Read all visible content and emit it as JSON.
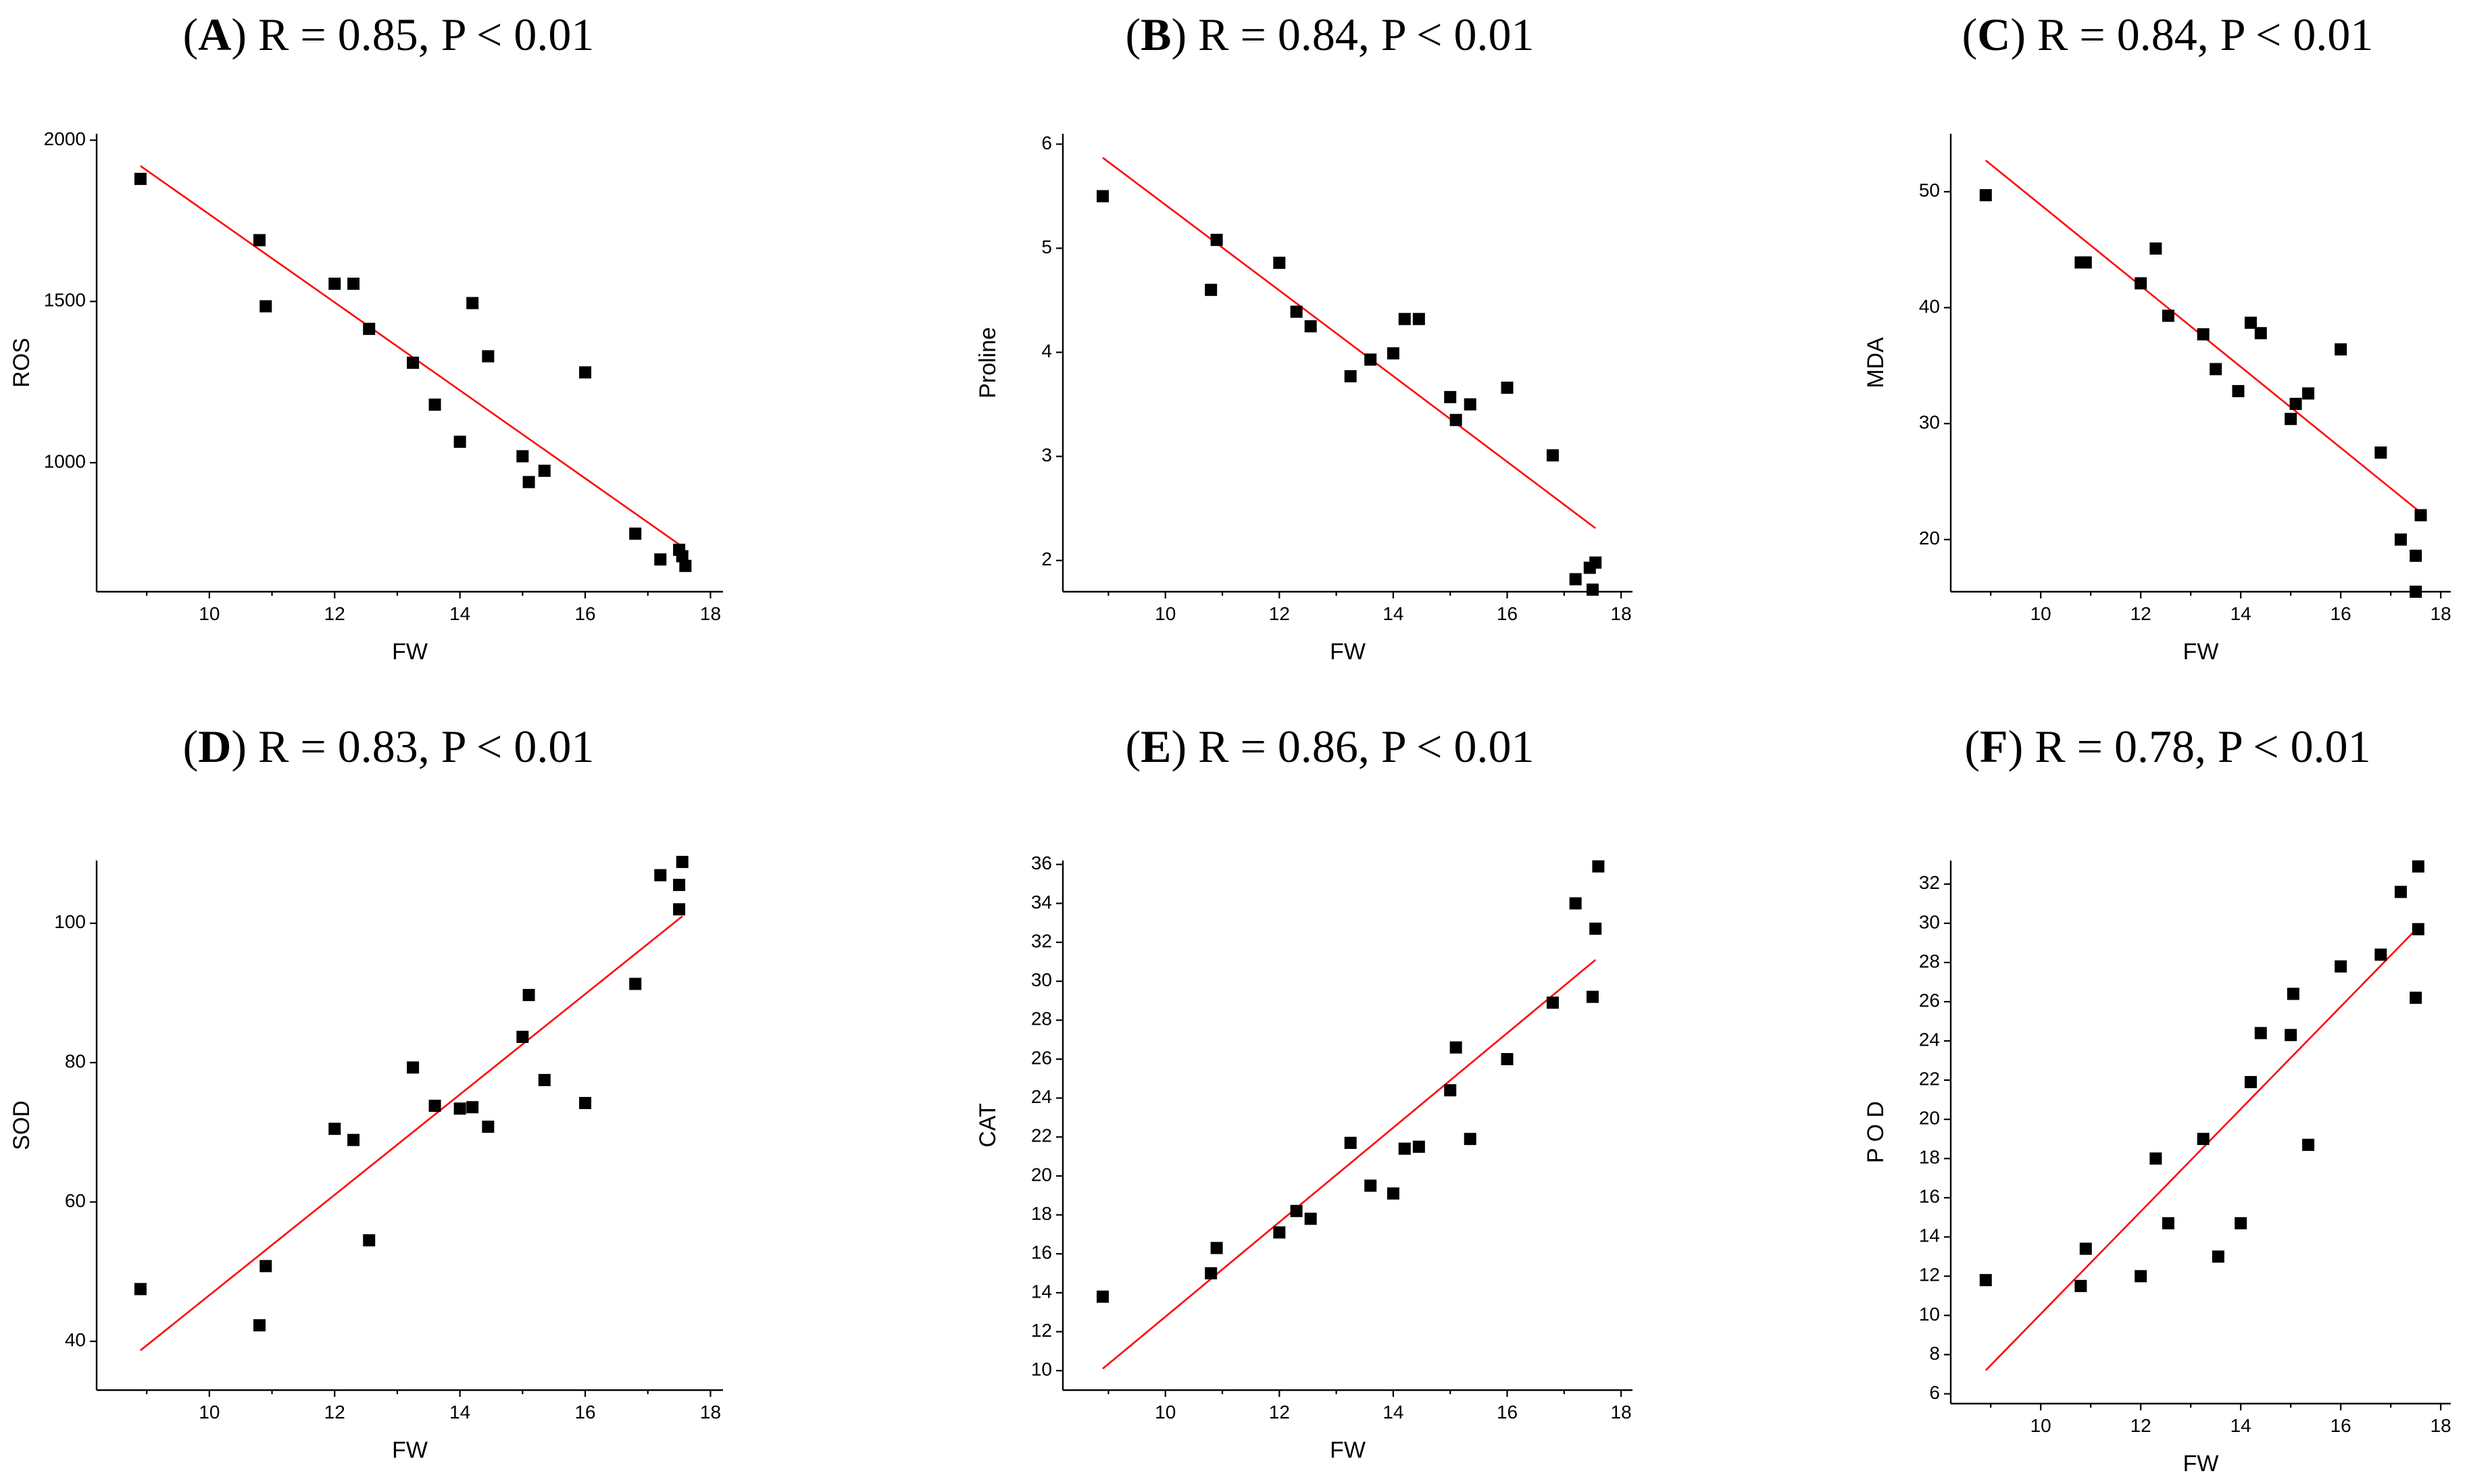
{
  "chart_data": [
    {
      "id": "A",
      "type": "scatter",
      "title_letter": "A",
      "title_rest": "R = 0.85, P < 0.01",
      "xlabel": "FW",
      "ylabel": "ROS",
      "xlim": [
        8.2,
        18.2
      ],
      "ylim": [
        600,
        2020
      ],
      "xticks": [
        10,
        12,
        14,
        16,
        18
      ],
      "yticks": [
        1000,
        1500,
        2000
      ],
      "points": [
        [
          8.9,
          1880
        ],
        [
          10.8,
          1690
        ],
        [
          10.9,
          1485
        ],
        [
          12.0,
          1555
        ],
        [
          12.3,
          1555
        ],
        [
          12.55,
          1415
        ],
        [
          13.25,
          1310
        ],
        [
          13.6,
          1180
        ],
        [
          14.0,
          1065
        ],
        [
          14.2,
          1495
        ],
        [
          14.45,
          1330
        ],
        [
          15.0,
          1020
        ],
        [
          15.1,
          940
        ],
        [
          15.35,
          975
        ],
        [
          16.0,
          1280
        ],
        [
          16.8,
          780
        ],
        [
          17.2,
          700
        ],
        [
          17.5,
          730
        ],
        [
          17.55,
          710
        ],
        [
          17.6,
          680
        ]
      ],
      "fit": {
        "x0": 8.9,
        "y0": 1920,
        "x1": 17.55,
        "y1": 740
      }
    },
    {
      "id": "B",
      "type": "scatter",
      "title_letter": "B",
      "title_rest": "R = 0.84, P < 0.01",
      "xlabel": "FW",
      "ylabel": "Proline",
      "xlim": [
        8.2,
        18.2
      ],
      "ylim": [
        1.7,
        6.1
      ],
      "xticks": [
        10,
        12,
        14,
        16,
        18
      ],
      "yticks": [
        2,
        3,
        4,
        5,
        6
      ],
      "points": [
        [
          8.9,
          5.5
        ],
        [
          10.8,
          4.6
        ],
        [
          10.9,
          5.08
        ],
        [
          12.0,
          4.86
        ],
        [
          12.3,
          4.39
        ],
        [
          12.55,
          4.25
        ],
        [
          13.25,
          3.77
        ],
        [
          13.6,
          3.93
        ],
        [
          14.0,
          3.99
        ],
        [
          14.2,
          4.32
        ],
        [
          14.45,
          4.32
        ],
        [
          15.0,
          3.57
        ],
        [
          15.1,
          3.35
        ],
        [
          15.35,
          3.5
        ],
        [
          16.0,
          3.66
        ],
        [
          16.8,
          3.01
        ],
        [
          17.2,
          1.82
        ],
        [
          17.45,
          1.93
        ],
        [
          17.55,
          1.98
        ],
        [
          17.5,
          1.72
        ]
      ],
      "fit": {
        "x0": 8.9,
        "y0": 5.87,
        "x1": 17.55,
        "y1": 2.31
      }
    },
    {
      "id": "C",
      "type": "scatter",
      "title_letter": "C",
      "title_rest": "R = 0.84, P < 0.01",
      "xlabel": "FW",
      "ylabel": "MDA",
      "xlim": [
        8.2,
        18.2
      ],
      "ylim": [
        15.5,
        55
      ],
      "xticks": [
        10,
        12,
        14,
        16,
        18
      ],
      "yticks": [
        20,
        30,
        40,
        50
      ],
      "points": [
        [
          8.9,
          49.7
        ],
        [
          10.8,
          43.9
        ],
        [
          10.9,
          43.9
        ],
        [
          12.0,
          42.1
        ],
        [
          12.3,
          45.1
        ],
        [
          12.55,
          39.3
        ],
        [
          13.25,
          37.7
        ],
        [
          13.5,
          34.7
        ],
        [
          13.95,
          32.8
        ],
        [
          14.2,
          38.7
        ],
        [
          14.4,
          37.8
        ],
        [
          15.0,
          30.4
        ],
        [
          15.1,
          31.7
        ],
        [
          15.35,
          32.6
        ],
        [
          16.0,
          36.4
        ],
        [
          16.8,
          27.5
        ],
        [
          17.2,
          20.0
        ],
        [
          17.5,
          18.6
        ],
        [
          17.6,
          22.1
        ],
        [
          17.5,
          15.5
        ]
      ],
      "fit": {
        "x0": 8.9,
        "y0": 52.7,
        "x1": 17.55,
        "y1": 22.5
      }
    },
    {
      "id": "D",
      "type": "scatter",
      "title_letter": "D",
      "title_rest": "R = 0.83, P < 0.01",
      "xlabel": "FW",
      "ylabel": "SOD",
      "xlim": [
        8.2,
        18.2
      ],
      "ylim": [
        33,
        109
      ],
      "xticks": [
        10,
        12,
        14,
        16,
        18
      ],
      "yticks": [
        40,
        60,
        80,
        100
      ],
      "points": [
        [
          8.9,
          47.5
        ],
        [
          10.8,
          42.3
        ],
        [
          10.9,
          50.8
        ],
        [
          12.0,
          70.5
        ],
        [
          12.3,
          68.9
        ],
        [
          12.55,
          54.5
        ],
        [
          13.25,
          79.3
        ],
        [
          13.6,
          73.8
        ],
        [
          14.0,
          73.4
        ],
        [
          14.2,
          73.6
        ],
        [
          14.45,
          70.8
        ],
        [
          15.0,
          83.7
        ],
        [
          15.1,
          89.7
        ],
        [
          15.35,
          77.5
        ],
        [
          16.0,
          74.2
        ],
        [
          16.8,
          91.3
        ],
        [
          17.2,
          106.9
        ],
        [
          17.5,
          105.5
        ],
        [
          17.55,
          108.8
        ],
        [
          17.5,
          102.0
        ]
      ],
      "fit": {
        "x0": 8.9,
        "y0": 38.7,
        "x1": 17.55,
        "y1": 101.0
      }
    },
    {
      "id": "E",
      "type": "scatter",
      "title_letter": "E",
      "title_rest": "R = 0.86, P < 0.01",
      "xlabel": "FW",
      "ylabel": "CAT",
      "xlim": [
        8.2,
        18.2
      ],
      "ylim": [
        9,
        36.2
      ],
      "xticks": [
        10,
        12,
        14,
        16,
        18
      ],
      "yticks": [
        10,
        12,
        14,
        16,
        18,
        20,
        22,
        24,
        26,
        28,
        30,
        32,
        34,
        36
      ],
      "points": [
        [
          8.9,
          13.8
        ],
        [
          10.8,
          15.0
        ],
        [
          10.9,
          16.3
        ],
        [
          12.0,
          17.1
        ],
        [
          12.3,
          18.2
        ],
        [
          12.55,
          17.8
        ],
        [
          13.25,
          21.7
        ],
        [
          13.6,
          19.5
        ],
        [
          14.0,
          19.1
        ],
        [
          14.2,
          21.4
        ],
        [
          14.45,
          21.5
        ],
        [
          15.0,
          24.4
        ],
        [
          15.1,
          26.6
        ],
        [
          15.35,
          21.9
        ],
        [
          16.0,
          26.0
        ],
        [
          16.8,
          28.9
        ],
        [
          17.2,
          34.0
        ],
        [
          17.5,
          29.2
        ],
        [
          17.55,
          32.7
        ],
        [
          17.6,
          35.9
        ]
      ],
      "fit": {
        "x0": 8.9,
        "y0": 10.1,
        "x1": 17.55,
        "y1": 31.1
      }
    },
    {
      "id": "F",
      "type": "scatter",
      "title_letter": "F",
      "title_rest": "R = 0.78, P < 0.01",
      "xlabel": "FW",
      "ylabel": "P O D",
      "xlim": [
        8.2,
        18.2
      ],
      "ylim": [
        5.5,
        33.2
      ],
      "xticks": [
        10,
        12,
        14,
        16,
        18
      ],
      "yticks": [
        6,
        8,
        10,
        12,
        14,
        16,
        18,
        20,
        22,
        24,
        26,
        28,
        30,
        32
      ],
      "points": [
        [
          8.9,
          11.8
        ],
        [
          10.8,
          11.5
        ],
        [
          10.9,
          13.4
        ],
        [
          12.0,
          12.0
        ],
        [
          12.3,
          18.0
        ],
        [
          12.55,
          14.7
        ],
        [
          13.25,
          19.0
        ],
        [
          13.55,
          13.0
        ],
        [
          14.0,
          14.7
        ],
        [
          14.2,
          21.9
        ],
        [
          14.4,
          24.4
        ],
        [
          15.0,
          24.3
        ],
        [
          15.05,
          26.4
        ],
        [
          15.35,
          18.7
        ],
        [
          16.0,
          27.8
        ],
        [
          16.8,
          28.4
        ],
        [
          17.2,
          31.6
        ],
        [
          17.5,
          26.2
        ],
        [
          17.55,
          29.7
        ],
        [
          17.55,
          32.9
        ]
      ],
      "fit": {
        "x0": 8.9,
        "y0": 7.2,
        "x1": 17.55,
        "y1": 29.8
      }
    }
  ]
}
